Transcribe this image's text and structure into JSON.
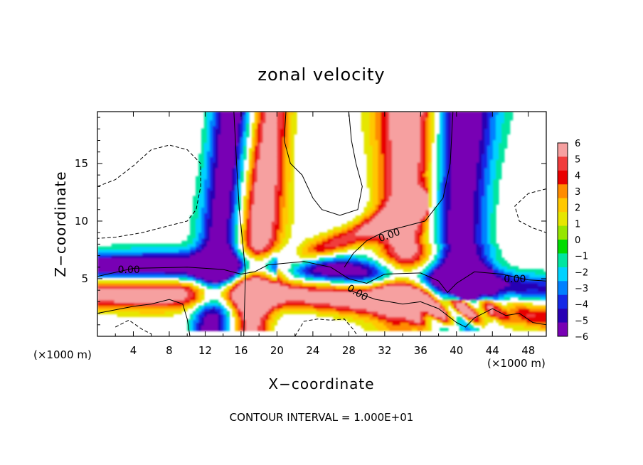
{
  "chart_data": {
    "type": "heatmap",
    "title": "zonal velocity",
    "xlabel": "X−coordinate",
    "ylabel": "Z−coordinate",
    "x_unit_label": "(×1000 m)",
    "y_unit_label": "(×1000 m)",
    "footnote": "CONTOUR INTERVAL = 1.000E+01",
    "xlim": [
      0,
      50
    ],
    "ylim": [
      0,
      19.5
    ],
    "x_ticks": [
      4,
      8,
      12,
      16,
      20,
      24,
      28,
      32,
      36,
      40,
      44,
      48
    ],
    "x_tick_labels": [
      "4",
      "8",
      "12",
      "16",
      "20",
      "24",
      "28",
      "32",
      "36",
      "40",
      "44",
      "48"
    ],
    "y_ticks": [
      5,
      10,
      15
    ],
    "y_tick_labels": [
      "5",
      "10",
      "15"
    ],
    "colorbar": {
      "min": -6,
      "max": 6,
      "labels": [
        "6",
        "5",
        "4",
        "3",
        "2",
        "1",
        "0",
        "−1",
        "−2",
        "−3",
        "−4",
        "−5",
        "−6"
      ],
      "colors_top_to_bottom": [
        "#f6a0a0",
        "#f03c3c",
        "#e80000",
        "#ff8c00",
        "#ffc800",
        "#e6e600",
        "#96e600",
        "#00dc00",
        "#00e6a0",
        "#00d2ff",
        "#0080ff",
        "#1428e6",
        "#2800b4",
        "#7800b4"
      ]
    },
    "contour_labels": [
      {
        "text": "0.00",
        "x": 3.5,
        "y": 5.8
      },
      {
        "text": "0.00",
        "x": 32.5,
        "y": 8.8
      },
      {
        "text": "0.00",
        "x": 29.0,
        "y": 3.8
      },
      {
        "text": "0.00",
        "x": 46.5,
        "y": 5.0
      }
    ],
    "features": {
      "plume_centers_x": [
        16,
        37
      ],
      "jet_center_z": 4.8,
      "white_below": 0.5
    }
  }
}
